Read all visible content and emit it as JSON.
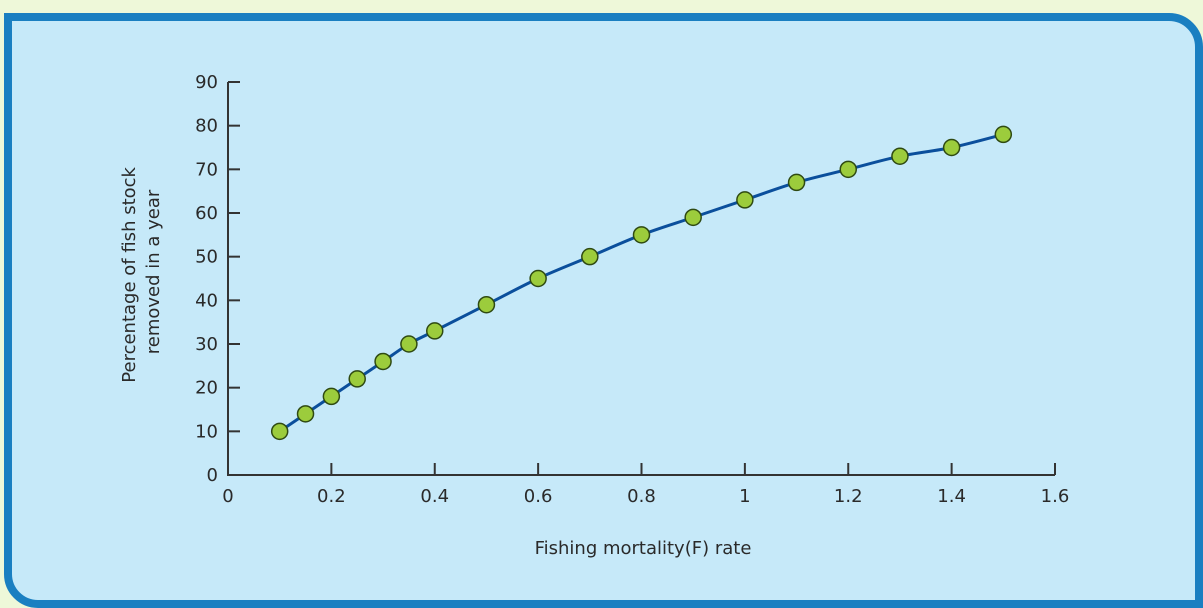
{
  "colors": {
    "page_background": "#eef8d9",
    "panel_background": "#c6e9f9",
    "panel_border": "#1a7fc1",
    "axis": "#333333",
    "line": "#0b4f9c",
    "marker_fill": "#9ccc3c",
    "marker_stroke": "#2f4a12"
  },
  "chart_data": {
    "type": "line",
    "title": "",
    "xlabel": "Fishing mortality(F) rate",
    "ylabel": [
      "Percentage of fish stock",
      "removed in a year"
    ],
    "xlim": [
      0,
      1.6
    ],
    "ylim": [
      0,
      90
    ],
    "x_ticks": [
      0,
      0.2,
      0.4,
      0.6,
      0.8,
      1,
      1.2,
      1.4,
      1.6
    ],
    "x_tick_labels": [
      "0",
      "0.2",
      "0.4",
      "0.6",
      "0.8",
      "1",
      "1.2",
      "1.4",
      "1.6"
    ],
    "y_ticks": [
      0,
      10,
      20,
      30,
      40,
      50,
      60,
      70,
      80,
      90
    ],
    "y_tick_labels": [
      "0",
      "10",
      "20",
      "30",
      "40",
      "50",
      "60",
      "70",
      "80",
      "90"
    ],
    "grid": false,
    "legend": "none",
    "series": [
      {
        "x": [
          0.1,
          0.15,
          0.2,
          0.25,
          0.3,
          0.35,
          0.4,
          0.5,
          0.6,
          0.7,
          0.8,
          0.9,
          1.0,
          1.1,
          1.2,
          1.3,
          1.4,
          1.5
        ],
        "y": [
          10,
          14,
          18,
          22,
          26,
          30,
          33,
          39,
          45,
          50,
          55,
          59,
          63,
          67,
          70,
          73,
          75,
          78
        ]
      }
    ]
  }
}
